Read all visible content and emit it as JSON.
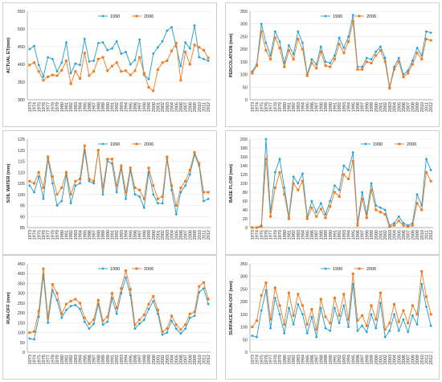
{
  "colors": {
    "s1990": "#1f9bd6",
    "s2006": "#f07a1e"
  },
  "years": [
    "1973",
    "1974",
    "1975",
    "1976",
    "1977",
    "1978",
    "1979",
    "1980",
    "1981",
    "1982",
    "1983",
    "1984",
    "1985",
    "1986",
    "1987",
    "1988",
    "1989",
    "1990",
    "1991",
    "1992",
    "1993",
    "1994",
    "1995",
    "1996",
    "1997",
    "1998",
    "1999",
    "2000",
    "2001",
    "2002",
    "2003",
    "2004",
    "2005",
    "2006",
    "2007",
    "2008",
    "2009",
    "2010",
    "2011",
    "2012"
  ],
  "chart_data": [
    {
      "type": "line",
      "ylabel": "ACTUAL ET(mm)",
      "ylim": [
        300,
        550
      ],
      "yticks": [
        300,
        350,
        400,
        450,
        500,
        550
      ],
      "legend": "top-center",
      "series": [
        {
          "name": "1990",
          "values": [
            443,
            452,
            398,
            365,
            420,
            415,
            380,
            405,
            462,
            375,
            402,
            398,
            472,
            408,
            410,
            460,
            462,
            440,
            445,
            465,
            430,
            435,
            400,
            412,
            470,
            370,
            358,
            430,
            448,
            465,
            495,
            505,
            450,
            395,
            462,
            445,
            510,
            420,
            415,
            410
          ]
        },
        {
          "name": "2006",
          "values": [
            398,
            405,
            380,
            355,
            365,
            370,
            368,
            383,
            410,
            345,
            380,
            360,
            432,
            368,
            380,
            415,
            420,
            382,
            395,
            405,
            380,
            382,
            370,
            382,
            420,
            375,
            335,
            325,
            385,
            405,
            410,
            438,
            460,
            355,
            435,
            400,
            455,
            448,
            440,
            418
          ]
        }
      ]
    },
    {
      "type": "line",
      "ylabel": "PERCOLATION (mm)",
      "ylim": [
        0,
        350
      ],
      "yticks": [
        0,
        50,
        100,
        150,
        200,
        250,
        300,
        350
      ],
      "legend": "top-center",
      "series": [
        {
          "name": "1990",
          "values": [
            112,
            140,
            300,
            225,
            175,
            270,
            230,
            145,
            215,
            180,
            270,
            225,
            100,
            160,
            140,
            210,
            150,
            145,
            175,
            245,
            205,
            250,
            335,
            130,
            130,
            165,
            160,
            190,
            210,
            165,
            50,
            130,
            165,
            100,
            115,
            155,
            205,
            175,
            270,
            265
          ]
        },
        {
          "name": "2006",
          "values": [
            105,
            135,
            270,
            195,
            160,
            245,
            205,
            130,
            195,
            160,
            240,
            200,
            95,
            145,
            125,
            190,
            135,
            130,
            160,
            220,
            185,
            230,
            310,
            120,
            120,
            150,
            145,
            175,
            195,
            150,
            45,
            120,
            150,
            90,
            105,
            140,
            185,
            160,
            240,
            235
          ]
        }
      ]
    },
    {
      "type": "line",
      "ylabel": "SOIL WATER (mm)",
      "ylim": [
        85,
        125
      ],
      "yticks": [
        85,
        90,
        95,
        100,
        105,
        110,
        115,
        120,
        125
      ],
      "legend": "top-center",
      "series": [
        {
          "name": "1990",
          "values": [
            104,
            101,
            108,
            98,
            116,
            105,
            95,
            97,
            109,
            96,
            104,
            105,
            120,
            106,
            105,
            120,
            100,
            115,
            114,
            101,
            112,
            98,
            111,
            100,
            99,
            94,
            110,
            100,
            96,
            96,
            116,
            102,
            91,
            101,
            104,
            109,
            118,
            113,
            97,
            98
          ]
        },
        {
          "name": "2006",
          "values": [
            106,
            105,
            110,
            103,
            117,
            108,
            100,
            103,
            110,
            100,
            106,
            107,
            122,
            107,
            106,
            120,
            103,
            116,
            116,
            104,
            113,
            101,
            112,
            103,
            102,
            98,
            112,
            104,
            98,
            99,
            117,
            104,
            95,
            103,
            106,
            111,
            119,
            114,
            101,
            101
          ]
        }
      ]
    },
    {
      "type": "line",
      "ylabel": "BASE FLOW (mm)",
      "ylim": [
        0,
        200
      ],
      "yticks": [
        0,
        20,
        40,
        60,
        80,
        100,
        120,
        140,
        160,
        180,
        200
      ],
      "legend": "top-right",
      "series": [
        {
          "name": "1990",
          "values": [
            0,
            0,
            5,
            200,
            35,
            125,
            155,
            90,
            25,
            115,
            100,
            122,
            25,
            60,
            35,
            55,
            30,
            60,
            95,
            85,
            140,
            130,
            170,
            10,
            80,
            30,
            100,
            50,
            45,
            40,
            5,
            10,
            25,
            10,
            5,
            10,
            75,
            50,
            155,
            130
          ]
        },
        {
          "name": "2006",
          "values": [
            0,
            0,
            2,
            155,
            25,
            90,
            125,
            75,
            20,
            100,
            85,
            105,
            20,
            45,
            25,
            42,
            22,
            48,
            80,
            70,
            120,
            110,
            150,
            5,
            65,
            22,
            85,
            40,
            35,
            30,
            2,
            5,
            15,
            5,
            2,
            5,
            55,
            40,
            125,
            105
          ]
        }
      ]
    },
    {
      "type": "line",
      "ylabel": "RUN-OFF (mm)",
      "ylim": [
        0,
        450
      ],
      "yticks": [
        0,
        50,
        100,
        150,
        200,
        250,
        300,
        350,
        400,
        450
      ],
      "legend": "top-center",
      "series": [
        {
          "name": "1990",
          "values": [
            70,
            65,
            180,
            395,
            150,
            315,
            265,
            175,
            215,
            235,
            240,
            220,
            155,
            120,
            145,
            245,
            140,
            155,
            275,
            195,
            300,
            380,
            290,
            120,
            145,
            165,
            220,
            260,
            195,
            90,
            100,
            160,
            120,
            95,
            120,
            175,
            185,
            305,
            325,
            245
          ]
        },
        {
          "name": "2006",
          "values": [
            100,
            105,
            210,
            425,
            175,
            345,
            300,
            195,
            245,
            260,
            270,
            250,
            175,
            145,
            165,
            265,
            160,
            180,
            300,
            225,
            325,
            415,
            320,
            140,
            165,
            190,
            245,
            285,
            215,
            105,
            120,
            185,
            140,
            115,
            140,
            195,
            205,
            335,
            355,
            270
          ]
        }
      ]
    },
    {
      "type": "line",
      "ylabel": "SURFACE RUN-OFF (mm)",
      "ylim": [
        0,
        350
      ],
      "yticks": [
        0,
        50,
        100,
        150,
        200,
        250,
        300,
        350
      ],
      "legend": "top-center",
      "series": [
        {
          "name": "1990",
          "values": [
            65,
            60,
            165,
            245,
            95,
            215,
            150,
            75,
            175,
            110,
            190,
            150,
            75,
            140,
            60,
            175,
            95,
            85,
            175,
            115,
            185,
            100,
            270,
            85,
            105,
            80,
            150,
            95,
            195,
            60,
            85,
            150,
            85,
            130,
            80,
            145,
            110,
            270,
            180,
            105
          ]
        },
        {
          "name": "2006",
          "values": [
            100,
            125,
            225,
            275,
            130,
            255,
            185,
            110,
            235,
            145,
            230,
            185,
            110,
            170,
            90,
            210,
            140,
            115,
            215,
            145,
            230,
            130,
            310,
            125,
            145,
            105,
            185,
            130,
            235,
            90,
            115,
            190,
            120,
            165,
            115,
            185,
            150,
            320,
            220,
            150
          ]
        }
      ]
    }
  ]
}
